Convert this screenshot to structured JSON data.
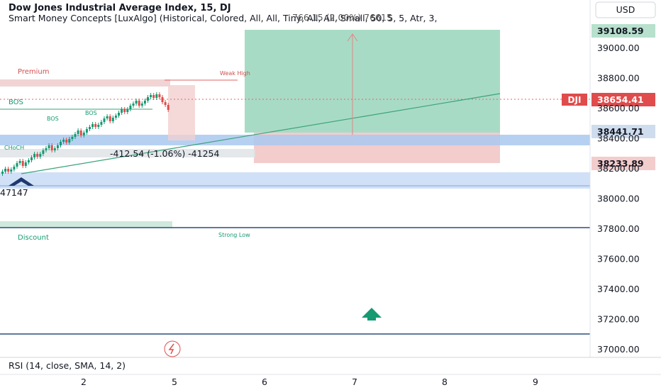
{
  "header": {
    "title": "Dow Jones Industrial Average Index, 15, DJ",
    "indicator": "Smart Money Concepts [LuxAlgo] (Historical, Colored, All, All, Tiny, All, All, Small, 50, 5, 5, Atr, 3,",
    "overlay": "766.15 (2.00%) 76615"
  },
  "currency": "USD",
  "price_axis": {
    "ticks": [
      "39000.00",
      "38800.00",
      "38600.00",
      "38400.00",
      "38200.00",
      "38000.00",
      "37800.00",
      "37600.00",
      "37400.00",
      "37200.00",
      "37000.00"
    ]
  },
  "price_labels": {
    "top": "39108.59",
    "symbol": "DJI",
    "last": "38654.41",
    "mid": "38441.71",
    "low": "38233.89"
  },
  "annotations": {
    "premium": "Premium",
    "weak_high": "Weak High",
    "bos": [
      "BOS",
      "BOS",
      "BOS"
    ],
    "choch": "CHoCH",
    "discount": "Discount",
    "strong_low": "Strong Low",
    "measure": "-412.54 (-1.06%) -41254",
    "left_value": "47147"
  },
  "rsi_label": "RSI (14, close, SMA, 14, 2)",
  "time_axis": {
    "ticks": [
      "2",
      "5",
      "6",
      "7",
      "8",
      "9"
    ]
  }
}
